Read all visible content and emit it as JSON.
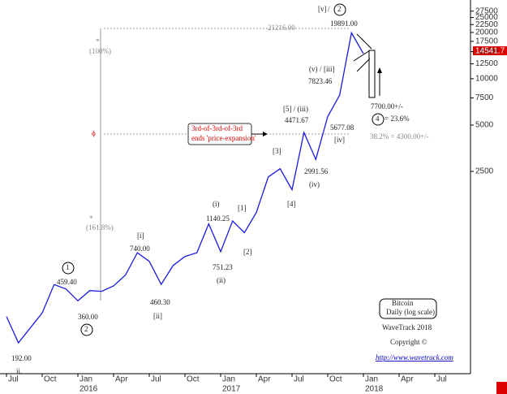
{
  "chart_data": {
    "type": "line",
    "log_scale": true,
    "series": [
      {
        "name": "Bitcoin",
        "color": "#1a1ae0",
        "x": [
          "2015-07",
          "2015-08",
          "2015-09",
          "2015-10",
          "2015-11",
          "2015-12",
          "2016-01",
          "2016-02",
          "2016-03",
          "2016-04",
          "2016-05",
          "2016-06",
          "2016-07",
          "2016-08",
          "2016-09",
          "2016-10",
          "2016-11",
          "2016-12",
          "2017-01",
          "2017-02",
          "2017-03",
          "2017-04",
          "2017-05",
          "2017-06",
          "2017-07",
          "2017-08",
          "2017-09",
          "2017-10",
          "2017-11",
          "2017-12",
          "2018-01"
        ],
        "values": [
          285,
          192,
          240,
          300,
          459.4,
          430,
          360,
          420,
          415,
          450,
          530,
          740,
          650,
          460.3,
          610,
          700,
          740,
          1140.25,
          751.23,
          1190,
          1000,
          1350,
          2300,
          2600,
          1900,
          4471.67,
          2991.56,
          5677.08,
          7823.46,
          19891,
          14541.7
        ]
      }
    ],
    "ylim": [
      124,
      32500
    ],
    "yticks": [
      2500,
      5000,
      7500,
      10000,
      12500,
      15000,
      17500,
      20000,
      22500,
      25000,
      27500
    ],
    "xlim": [
      "2015-07",
      "2018-10"
    ],
    "xticks": [
      {
        "value": "2015-07",
        "label": "Jul"
      },
      {
        "value": "2015-10",
        "label": "Oct"
      },
      {
        "value": "2016-01",
        "label": "Jan"
      },
      {
        "value": "2016-04",
        "label": "Apr"
      },
      {
        "value": "2016-07",
        "label": "Jul"
      },
      {
        "value": "2016-10",
        "label": "Oct"
      },
      {
        "value": "2017-01",
        "label": "Jan"
      },
      {
        "value": "2017-04",
        "label": "Apr"
      },
      {
        "value": "2017-07",
        "label": "Jul"
      },
      {
        "value": "2017-10",
        "label": "Oct"
      },
      {
        "value": "2018-01",
        "label": "Jan"
      },
      {
        "value": "2018-04",
        "label": "Apr"
      },
      {
        "value": "2018-07",
        "label": "Jul"
      }
    ],
    "year_labels": [
      {
        "value": "2016-01",
        "label": "2016"
      },
      {
        "value": "2017-01",
        "label": "2017"
      },
      {
        "value": "2018-01",
        "label": "2018"
      }
    ],
    "last_price": "14541.7",
    "annotations": [
      "[v]",
      "/",
      "2",
      "19891.00",
      "21216.00",
      "*",
      "(100%)",
      "ϕ",
      "*",
      "(161.8%)",
      "3rd-of-3rd-of-3rd",
      "ends 'price-expansion'",
      "(v)",
      "/",
      "[iii]",
      "7823.46",
      "[5] / (iii)",
      "4471.67",
      "5677.08",
      "[iv]",
      "[3]",
      "2991.56",
      "(iv)",
      "[4]",
      "(i)",
      "1140.25",
      "[1]",
      "[2]",
      "751.23",
      "(ii)",
      "[i]",
      "740.00",
      "460.30",
      "[ii]",
      "1",
      "459.40",
      "360.00",
      "2",
      "192.00",
      "ii.",
      "7700.00+/-",
      "4",
      "= 23.6%",
      "38.2% = 4300.00+/-",
      "Bitcoin",
      "Daily (log scale)",
      "WaveTrack 2018",
      "Copyright ©",
      "http://www.wavetrack.com"
    ]
  }
}
